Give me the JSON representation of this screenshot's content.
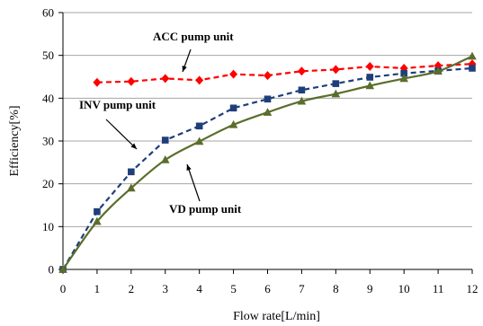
{
  "chart_data": {
    "type": "line",
    "title": "",
    "xlabel": "Flow rate[L/min]",
    "ylabel": "Efficiency[%]",
    "xlim": [
      0,
      12
    ],
    "ylim": [
      0,
      60
    ],
    "x_ticks": [
      0,
      1,
      2,
      3,
      4,
      5,
      6,
      7,
      8,
      9,
      10,
      11,
      12
    ],
    "y_ticks": [
      0,
      10,
      20,
      30,
      40,
      50,
      60
    ],
    "grid": "horizontal",
    "legend": "none",
    "series": [
      {
        "name": "ACC pump unit",
        "color": "#ff0000",
        "line_style": "dashed",
        "marker": "diamond",
        "points": [
          [
            1,
            43.7
          ],
          [
            2,
            43.9
          ],
          [
            3,
            44.6
          ],
          [
            4,
            44.2
          ],
          [
            5,
            45.6
          ],
          [
            6,
            45.3
          ],
          [
            7,
            46.3
          ],
          [
            8,
            46.7
          ],
          [
            9,
            47.4
          ],
          [
            10,
            47.0
          ],
          [
            11,
            47.6
          ],
          [
            12,
            48.0
          ]
        ]
      },
      {
        "name": "INV pump unit",
        "color": "#1f3f7a",
        "line_style": "dashed",
        "marker": "square",
        "points": [
          [
            0,
            0
          ],
          [
            1,
            13.5
          ],
          [
            2,
            22.8
          ],
          [
            3,
            30.2
          ],
          [
            4,
            33.5
          ],
          [
            5,
            37.7
          ],
          [
            6,
            39.8
          ],
          [
            7,
            41.9
          ],
          [
            8,
            43.4
          ],
          [
            9,
            44.9
          ],
          [
            10,
            45.8
          ],
          [
            11,
            46.4
          ],
          [
            12,
            47.0
          ]
        ]
      },
      {
        "name": "VD pump unit",
        "color": "#5a6e2b",
        "line_style": "solid",
        "marker": "triangle",
        "points": [
          [
            0,
            0
          ],
          [
            1,
            11.2
          ],
          [
            2,
            19.0
          ],
          [
            3,
            25.6
          ],
          [
            4,
            29.9
          ],
          [
            5,
            33.8
          ],
          [
            6,
            36.7
          ],
          [
            7,
            39.3
          ],
          [
            8,
            41.0
          ],
          [
            9,
            42.9
          ],
          [
            10,
            44.6
          ],
          [
            11,
            46.3
          ],
          [
            12,
            49.8
          ]
        ]
      }
    ],
    "annotations": [
      {
        "text": "ACC pump unit",
        "series": "ACC pump unit",
        "at": [
          3.5,
          44.4
        ]
      },
      {
        "text": "INV pump unit",
        "series": "INV pump unit",
        "at": [
          2.4,
          27.0
        ]
      },
      {
        "text": "VD pump unit",
        "series": "VD pump unit",
        "at": [
          3.4,
          27.5
        ]
      }
    ]
  }
}
